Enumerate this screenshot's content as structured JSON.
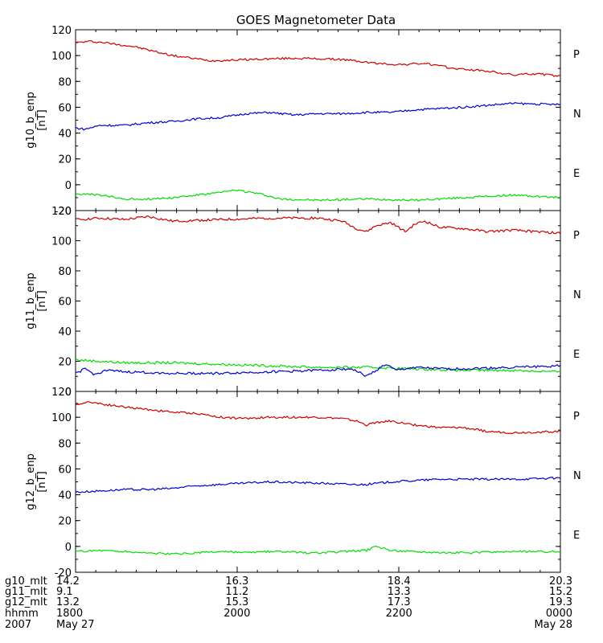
{
  "title": "GOES Magnetometer Data",
  "colors": {
    "P": "#cc0000",
    "N": "#00dd00",
    "E": "#0000cc",
    "axis": "#000000"
  },
  "chart_data": [
    {
      "type": "line",
      "ylabel": "g10_b_enp",
      "unit": "[nT]",
      "ylim": [
        -20,
        120
      ],
      "yticks": [
        "120",
        "100",
        "80",
        "60",
        "40",
        "20",
        "0",
        "-20"
      ],
      "legend": [
        "P",
        "N",
        "E"
      ],
      "series": [
        {
          "name": "P",
          "color": "#cc0000",
          "x": [
            0,
            0.03,
            0.06,
            0.12,
            0.2,
            0.28,
            0.36,
            0.45,
            0.55,
            0.62,
            0.67,
            0.72,
            0.78,
            0.85,
            0.9,
            0.95,
            1.0
          ],
          "values": [
            110,
            111,
            110,
            107,
            100,
            96,
            97,
            98,
            97,
            94,
            93,
            94,
            90,
            88,
            85,
            86,
            84
          ]
        },
        {
          "name": "N",
          "color": "#0000cc",
          "x": [
            0,
            0.02,
            0.05,
            0.1,
            0.15,
            0.2,
            0.25,
            0.3,
            0.35,
            0.4,
            0.45,
            0.5,
            0.55,
            0.6,
            0.65,
            0.7,
            0.8,
            0.9,
            1.0
          ],
          "values": [
            44,
            43,
            46,
            46,
            48,
            49,
            51,
            52,
            55,
            56,
            54,
            55,
            55,
            56,
            56,
            58,
            60,
            63,
            62
          ]
        },
        {
          "name": "E",
          "color": "#00dd00",
          "x": [
            0,
            0.05,
            0.1,
            0.15,
            0.2,
            0.25,
            0.3,
            0.33,
            0.38,
            0.42,
            0.5,
            0.6,
            0.7,
            0.8,
            0.9,
            1.0
          ],
          "values": [
            -7,
            -8,
            -11,
            -11,
            -10,
            -8,
            -6,
            -4,
            -7,
            -11,
            -12,
            -11,
            -12,
            -10,
            -8,
            -10
          ]
        }
      ]
    },
    {
      "type": "line",
      "ylabel": "g11_b_enp",
      "unit": "[nT]",
      "ylim": [
        0,
        120
      ],
      "yticks": [
        "120",
        "100",
        "80",
        "60",
        "40",
        "20",
        "0"
      ],
      "legend": [
        "P",
        "N",
        "E"
      ],
      "series": [
        {
          "name": "P",
          "color": "#cc0000",
          "x": [
            0,
            0.05,
            0.1,
            0.15,
            0.2,
            0.3,
            0.4,
            0.5,
            0.55,
            0.58,
            0.6,
            0.62,
            0.65,
            0.68,
            0.7,
            0.72,
            0.75,
            0.8,
            0.85,
            0.9,
            0.95,
            1.0
          ],
          "values": [
            114,
            115,
            114,
            116,
            113,
            114,
            115,
            115,
            113,
            108,
            106,
            110,
            112,
            106,
            111,
            113,
            109,
            108,
            106,
            107,
            106,
            105
          ]
        },
        {
          "name": "N",
          "color": "#00dd00",
          "x": [
            0,
            0.05,
            0.1,
            0.2,
            0.3,
            0.4,
            0.5,
            0.6,
            0.7,
            0.8,
            0.9,
            1.0
          ],
          "values": [
            21,
            20,
            19,
            19,
            18,
            17,
            16,
            16,
            15,
            14,
            14,
            13
          ]
        },
        {
          "name": "E",
          "color": "#0000cc",
          "x": [
            0,
            0.02,
            0.04,
            0.06,
            0.1,
            0.2,
            0.3,
            0.4,
            0.5,
            0.57,
            0.6,
            0.62,
            0.64,
            0.66,
            0.7,
            0.75,
            0.8,
            0.9,
            1.0
          ],
          "values": [
            12,
            15,
            11,
            14,
            13,
            12,
            12,
            13,
            14,
            15,
            10,
            14,
            18,
            14,
            16,
            15,
            15,
            16,
            17
          ]
        }
      ]
    },
    {
      "type": "line",
      "ylabel": "g12_b_enp",
      "unit": "[nT]",
      "ylim": [
        -20,
        120
      ],
      "yticks": [
        "120",
        "100",
        "80",
        "60",
        "40",
        "20",
        "0",
        "-20"
      ],
      "legend": [
        "P",
        "N",
        "E"
      ],
      "series": [
        {
          "name": "P",
          "color": "#cc0000",
          "x": [
            0,
            0.03,
            0.06,
            0.1,
            0.15,
            0.2,
            0.25,
            0.3,
            0.35,
            0.4,
            0.5,
            0.55,
            0.58,
            0.6,
            0.62,
            0.65,
            0.7,
            0.75,
            0.8,
            0.85,
            0.9,
            1.0
          ],
          "values": [
            110,
            112,
            110,
            108,
            106,
            104,
            103,
            100,
            99,
            100,
            100,
            99,
            97,
            94,
            96,
            97,
            94,
            92,
            92,
            89,
            88,
            89
          ]
        },
        {
          "name": "N",
          "color": "#0000cc",
          "x": [
            0,
            0.05,
            0.1,
            0.15,
            0.2,
            0.25,
            0.3,
            0.35,
            0.4,
            0.5,
            0.57,
            0.6,
            0.65,
            0.7,
            0.75,
            0.8,
            0.9,
            1.0
          ],
          "values": [
            42,
            43,
            44,
            44,
            45,
            47,
            48,
            49,
            50,
            49,
            48,
            48,
            50,
            51,
            52,
            52,
            52,
            53
          ]
        },
        {
          "name": "E",
          "color": "#00dd00",
          "x": [
            0,
            0.05,
            0.1,
            0.15,
            0.2,
            0.25,
            0.3,
            0.35,
            0.4,
            0.5,
            0.55,
            0.6,
            0.62,
            0.65,
            0.7,
            0.8,
            0.9,
            1.0
          ],
          "values": [
            -4,
            -3,
            -4,
            -5,
            -6,
            -5,
            -4,
            -5,
            -4,
            -5,
            -4,
            -3,
            0,
            -3,
            -4,
            -5,
            -4,
            -4
          ]
        }
      ]
    }
  ],
  "xaxis": {
    "row_labels": [
      "g10_mlt",
      "g11_mlt",
      "g12_mlt",
      "hhmm",
      "2007"
    ],
    "ticks": [
      {
        "pos": 0.0,
        "vals": [
          "14.2",
          "9.1",
          "13.2",
          "1800",
          "May 27"
        ]
      },
      {
        "pos": 0.333,
        "vals": [
          "16.3",
          "11.2",
          "15.3",
          "2000",
          ""
        ]
      },
      {
        "pos": 0.667,
        "vals": [
          "18.4",
          "13.3",
          "17.3",
          "2200",
          ""
        ]
      },
      {
        "pos": 1.0,
        "vals": [
          "20.3",
          "15.2",
          "19.3",
          "0000",
          "May 28"
        ]
      }
    ]
  }
}
